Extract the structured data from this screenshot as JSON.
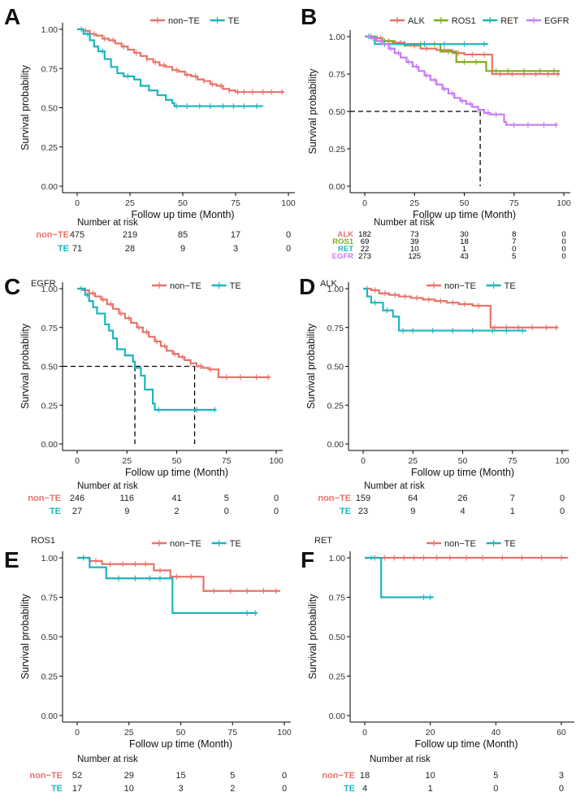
{
  "colors": {
    "non_te": "#E8736A",
    "te": "#1CB5BE",
    "alk": "#E8736A",
    "ros1": "#7CAE1A",
    "ret": "#1CB5BE",
    "egfr": "#C77CF2"
  },
  "chart_data": [
    {
      "panel": "A",
      "title": "",
      "type": "line",
      "xlabel": "Follow up time (Month)",
      "ylabel": "Survival probability",
      "xlim": [
        0,
        100
      ],
      "ylim": [
        0,
        1
      ],
      "xticks": [
        "0",
        "25",
        "50",
        "75",
        "100"
      ],
      "yticks": [
        "0.00",
        "0.25",
        "0.50",
        "0.75",
        "1.00"
      ],
      "series": [
        {
          "name": "non−TE",
          "color": "#E8736A",
          "x": [
            0,
            3,
            6,
            9,
            12,
            15,
            18,
            21,
            24,
            27,
            30,
            33,
            36,
            39,
            42,
            45,
            48,
            51,
            54,
            57,
            60,
            63,
            66,
            69,
            72,
            75,
            78,
            98
          ],
          "y": [
            1.0,
            0.99,
            0.97,
            0.96,
            0.94,
            0.93,
            0.91,
            0.89,
            0.87,
            0.85,
            0.83,
            0.81,
            0.79,
            0.77,
            0.76,
            0.74,
            0.73,
            0.71,
            0.7,
            0.68,
            0.67,
            0.65,
            0.64,
            0.62,
            0.61,
            0.6,
            0.6,
            0.6
          ],
          "censor": [
            4,
            8,
            13,
            17,
            22,
            28,
            33,
            37,
            41,
            47,
            52,
            56,
            60,
            64,
            68,
            72,
            76,
            79,
            83,
            88,
            92,
            97
          ]
        },
        {
          "name": "TE",
          "color": "#1CB5BE",
          "x": [
            0,
            3,
            6,
            8,
            10,
            13,
            16,
            19,
            22,
            27,
            30,
            34,
            38,
            42,
            45,
            46,
            88
          ],
          "y": [
            1.0,
            0.97,
            0.93,
            0.89,
            0.86,
            0.81,
            0.76,
            0.72,
            0.7,
            0.68,
            0.64,
            0.61,
            0.58,
            0.55,
            0.53,
            0.51,
            0.51
          ],
          "censor": [
            2,
            5,
            12,
            24,
            47,
            52,
            58,
            63,
            69,
            74,
            79,
            85
          ]
        }
      ],
      "risk": {
        "title": "Number at risk",
        "times": [
          "0",
          "25",
          "50",
          "75",
          "100"
        ],
        "rows": [
          {
            "label": "non−TE",
            "color": "#E8736A",
            "values": [
              "475",
              "219",
              "85",
              "17",
              "0"
            ]
          },
          {
            "label": "TE",
            "color": "#1CB5BE",
            "values": [
              "71",
              "28",
              "9",
              "3",
              "0"
            ]
          }
        ]
      }
    },
    {
      "panel": "B",
      "title": "",
      "type": "line",
      "xlabel": "Follow up time (Month)",
      "ylabel": "Survival probability",
      "xlim": [
        0,
        100
      ],
      "ylim": [
        0,
        1
      ],
      "xticks": [
        "0",
        "25",
        "50",
        "75",
        "100"
      ],
      "yticks": [
        "0.00",
        "0.25",
        "0.50",
        "0.75",
        "1.00"
      ],
      "median_lines": [
        58
      ],
      "series": [
        {
          "name": "ALK",
          "color": "#E8736A",
          "x": [
            0,
            5,
            9,
            14,
            20,
            28,
            36,
            44,
            50,
            56,
            63,
            64,
            98
          ],
          "y": [
            1.0,
            0.99,
            0.97,
            0.96,
            0.94,
            0.92,
            0.91,
            0.89,
            0.88,
            0.88,
            0.88,
            0.75,
            0.75
          ],
          "censor": [
            3,
            8,
            12,
            18,
            25,
            31,
            40,
            47,
            54,
            60,
            68,
            74,
            80,
            86,
            92,
            97
          ]
        },
        {
          "name": "ROS1",
          "color": "#7CAE1A",
          "x": [
            0,
            6,
            15,
            38,
            46,
            61,
            98
          ],
          "y": [
            1.0,
            0.97,
            0.95,
            0.9,
            0.83,
            0.77,
            0.77
          ],
          "censor": [
            3,
            10,
            20,
            28,
            35,
            42,
            50,
            56,
            66,
            72,
            80,
            88,
            95
          ]
        },
        {
          "name": "RET",
          "color": "#1CB5BE",
          "x": [
            0,
            5,
            62
          ],
          "y": [
            1.0,
            0.95,
            0.95
          ],
          "censor": [
            2,
            10,
            20,
            30,
            40,
            50,
            60
          ]
        },
        {
          "name": "EGFR",
          "color": "#C77CF2",
          "x": [
            0,
            3,
            6,
            9,
            12,
            15,
            18,
            21,
            24,
            27,
            30,
            33,
            36,
            39,
            42,
            45,
            48,
            51,
            54,
            57,
            60,
            63,
            66,
            69,
            70,
            71,
            97
          ],
          "y": [
            1.0,
            0.99,
            0.97,
            0.95,
            0.92,
            0.89,
            0.86,
            0.83,
            0.8,
            0.77,
            0.74,
            0.71,
            0.68,
            0.65,
            0.62,
            0.59,
            0.57,
            0.55,
            0.53,
            0.51,
            0.49,
            0.48,
            0.48,
            0.48,
            0.43,
            0.41,
            0.41
          ],
          "censor": [
            4,
            8,
            13,
            17,
            22,
            26,
            31,
            35,
            40,
            44,
            49,
            53,
            57,
            62,
            66,
            75,
            82,
            90,
            96
          ]
        }
      ],
      "risk": {
        "title": "Number at risk",
        "times": [
          "0",
          "25",
          "50",
          "75",
          "100"
        ],
        "rows": [
          {
            "label": "ALK",
            "color": "#E8736A",
            "values": [
              "182",
              "73",
              "30",
              "8",
              "0"
            ]
          },
          {
            "label": "ROS1",
            "color": "#7CAE1A",
            "values": [
              "69",
              "39",
              "18",
              "7",
              "0"
            ]
          },
          {
            "label": "RET",
            "color": "#1CB5BE",
            "values": [
              "22",
              "10",
              "1",
              "0",
              "0"
            ]
          },
          {
            "label": "EGFR",
            "color": "#C77CF2",
            "values": [
              "273",
              "125",
              "43",
              "5",
              "0"
            ]
          }
        ]
      }
    },
    {
      "panel": "C",
      "title": "EGFR",
      "type": "line",
      "xlabel": "Follow up time (Month)",
      "ylabel": "Survival probability",
      "xlim": [
        0,
        100
      ],
      "ylim": [
        0,
        1
      ],
      "xticks": [
        "0",
        "25",
        "50",
        "75",
        "100"
      ],
      "yticks": [
        "0.00",
        "0.25",
        "0.50",
        "0.75",
        "1.00"
      ],
      "median_lines": [
        29,
        59
      ],
      "series": [
        {
          "name": "non−TE",
          "color": "#E8736A",
          "x": [
            0,
            3,
            6,
            9,
            12,
            15,
            18,
            21,
            24,
            27,
            30,
            33,
            36,
            39,
            42,
            45,
            48,
            51,
            54,
            57,
            60,
            63,
            66,
            70,
            71,
            97
          ],
          "y": [
            1.0,
            0.99,
            0.97,
            0.95,
            0.93,
            0.9,
            0.87,
            0.84,
            0.81,
            0.78,
            0.75,
            0.72,
            0.69,
            0.66,
            0.63,
            0.6,
            0.58,
            0.56,
            0.54,
            0.52,
            0.5,
            0.49,
            0.48,
            0.48,
            0.43,
            0.43
          ],
          "censor": [
            4,
            8,
            13,
            17,
            22,
            26,
            31,
            35,
            40,
            44,
            49,
            53,
            57,
            62,
            67,
            75,
            82,
            90,
            96
          ]
        },
        {
          "name": "TE",
          "color": "#1CB5BE",
          "x": [
            0,
            4,
            6,
            8,
            10,
            14,
            16,
            18,
            20,
            24,
            28,
            29,
            32,
            34,
            38,
            39,
            70
          ],
          "y": [
            1.0,
            0.96,
            0.92,
            0.88,
            0.84,
            0.77,
            0.73,
            0.68,
            0.61,
            0.57,
            0.53,
            0.49,
            0.44,
            0.35,
            0.26,
            0.22,
            0.22
          ],
          "censor": [
            2,
            5,
            41,
            60,
            69
          ]
        }
      ],
      "risk": {
        "title": "Number at risk",
        "times": [
          "0",
          "25",
          "50",
          "75",
          "100"
        ],
        "rows": [
          {
            "label": "non−TE",
            "color": "#E8736A",
            "values": [
              "246",
              "116",
              "41",
              "5",
              "0"
            ]
          },
          {
            "label": "TE",
            "color": "#1CB5BE",
            "values": [
              "27",
              "9",
              "2",
              "0",
              "0"
            ]
          }
        ]
      }
    },
    {
      "panel": "D",
      "title": "ALK",
      "type": "line",
      "xlabel": "Follow up time (Month)",
      "ylabel": "Survival probability",
      "xlim": [
        0,
        100
      ],
      "ylim": [
        0,
        1
      ],
      "xticks": [
        "0",
        "25",
        "50",
        "75",
        "100"
      ],
      "yticks": [
        "0.00",
        "0.25",
        "0.50",
        "0.75",
        "1.00"
      ],
      "series": [
        {
          "name": "non−TE",
          "color": "#E8736A",
          "x": [
            0,
            4,
            8,
            13,
            18,
            24,
            30,
            36,
            42,
            48,
            55,
            63,
            64,
            98
          ],
          "y": [
            1.0,
            0.99,
            0.97,
            0.96,
            0.95,
            0.94,
            0.93,
            0.92,
            0.91,
            0.9,
            0.89,
            0.89,
            0.75,
            0.75
          ],
          "censor": [
            2,
            6,
            11,
            16,
            21,
            27,
            33,
            39,
            45,
            51,
            58,
            66,
            72,
            78,
            85,
            92,
            97
          ]
        },
        {
          "name": "TE",
          "color": "#1CB5BE",
          "x": [
            0,
            2,
            4,
            10,
            15,
            18,
            82
          ],
          "y": [
            1.0,
            0.95,
            0.91,
            0.86,
            0.82,
            0.73,
            0.73
          ],
          "censor": [
            6,
            12,
            20,
            25,
            35,
            45,
            55,
            65,
            72,
            80
          ]
        }
      ],
      "risk": {
        "title": "Number at risk",
        "times": [
          "0",
          "25",
          "50",
          "75",
          "100"
        ],
        "rows": [
          {
            "label": "non−TE",
            "color": "#E8736A",
            "values": [
              "159",
              "64",
              "26",
              "7",
              "0"
            ]
          },
          {
            "label": "TE",
            "color": "#1CB5BE",
            "values": [
              "23",
              "9",
              "4",
              "1",
              "0"
            ]
          }
        ]
      }
    },
    {
      "panel": "E",
      "title": "ROS1",
      "type": "line",
      "xlabel": "Follow up time (Month)",
      "ylabel": "Survival probability",
      "xlim": [
        0,
        100
      ],
      "ylim": [
        0,
        1
      ],
      "xticks": [
        "0",
        "25",
        "50",
        "75",
        "100"
      ],
      "yticks": [
        "0.00",
        "0.25",
        "0.50",
        "0.75",
        "1.00"
      ],
      "series": [
        {
          "name": "non−TE",
          "color": "#E8736A",
          "x": [
            0,
            6,
            12,
            37,
            45,
            61,
            98
          ],
          "y": [
            1.0,
            0.98,
            0.96,
            0.92,
            0.88,
            0.79,
            0.79
          ],
          "censor": [
            3,
            9,
            16,
            22,
            28,
            33,
            40,
            48,
            55,
            66,
            74,
            82,
            90,
            96
          ]
        },
        {
          "name": "TE",
          "color": "#1CB5BE",
          "x": [
            0,
            6,
            14,
            46,
            87
          ],
          "y": [
            1.0,
            0.94,
            0.87,
            0.65,
            0.65
          ],
          "censor": [
            3,
            20,
            28,
            35,
            40,
            82,
            86
          ]
        }
      ],
      "risk": {
        "title": "Number at risk",
        "times": [
          "0",
          "25",
          "50",
          "75",
          "100"
        ],
        "rows": [
          {
            "label": "non−TE",
            "color": "#E8736A",
            "values": [
              "52",
              "29",
              "15",
              "5",
              "0"
            ]
          },
          {
            "label": "TE",
            "color": "#1CB5BE",
            "values": [
              "17",
              "10",
              "3",
              "2",
              "0"
            ]
          }
        ]
      }
    },
    {
      "panel": "F",
      "title": "RET",
      "type": "line",
      "xlabel": "Follow up time (Month)",
      "ylabel": "Survival probability",
      "xlim": [
        0,
        62
      ],
      "ylim": [
        0,
        1
      ],
      "xticks": [
        "0",
        "20",
        "40",
        "60"
      ],
      "yticks": [
        "0.00",
        "0.25",
        "0.50",
        "0.75",
        "1.00"
      ],
      "series": [
        {
          "name": "non−TE",
          "color": "#E8736A",
          "x": [
            0,
            62
          ],
          "y": [
            1.0,
            1.0
          ],
          "censor": [
            3,
            6,
            9,
            12,
            15,
            18,
            22,
            26,
            31,
            36,
            42,
            48,
            54,
            60
          ]
        },
        {
          "name": "TE",
          "color": "#1CB5BE",
          "x": [
            0,
            5,
            21
          ],
          "y": [
            1.0,
            0.75,
            0.75
          ],
          "censor": [
            2,
            18,
            20
          ]
        }
      ],
      "risk": {
        "title": "Number at risk",
        "times": [
          "0",
          "20",
          "40",
          "60"
        ],
        "rows": [
          {
            "label": "non−TE",
            "color": "#E8736A",
            "values": [
              "18",
              "10",
              "5",
              "3"
            ]
          },
          {
            "label": "TE",
            "color": "#1CB5BE",
            "values": [
              "4",
              "1",
              "0",
              "0"
            ]
          }
        ]
      }
    }
  ]
}
